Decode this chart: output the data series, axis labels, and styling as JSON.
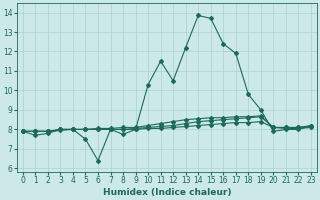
{
  "xlabel": "Humidex (Indice chaleur)",
  "background_color": "#cce8e8",
  "grid_color": "#aad0d0",
  "line_color": "#1a6b5a",
  "xlim": [
    -0.5,
    23.5
  ],
  "ylim": [
    5.8,
    14.5
  ],
  "yticks": [
    6,
    7,
    8,
    9,
    10,
    11,
    12,
    13,
    14
  ],
  "xticks": [
    0,
    1,
    2,
    3,
    4,
    5,
    6,
    7,
    8,
    9,
    10,
    11,
    12,
    13,
    14,
    15,
    16,
    17,
    18,
    19,
    20,
    21,
    22,
    23
  ],
  "line1_x": [
    0,
    1,
    2,
    3,
    4,
    5,
    6,
    7,
    8,
    9,
    10,
    11,
    12,
    13,
    14,
    15,
    16,
    17,
    18,
    19,
    20,
    21,
    22,
    23
  ],
  "line1_y": [
    7.9,
    7.7,
    7.8,
    8.0,
    8.0,
    7.5,
    6.4,
    8.0,
    7.75,
    8.0,
    10.3,
    11.5,
    10.5,
    12.2,
    13.85,
    13.7,
    12.4,
    11.9,
    9.8,
    9.0,
    7.9,
    8.0,
    8.0,
    8.2
  ],
  "line2_x": [
    0,
    1,
    2,
    3,
    4,
    5,
    6,
    7,
    8,
    9,
    10,
    11,
    12,
    13,
    14,
    15,
    16,
    17,
    18,
    19,
    20,
    21,
    22,
    23
  ],
  "line2_y": [
    7.9,
    7.9,
    7.9,
    8.0,
    8.0,
    8.0,
    8.05,
    8.05,
    8.1,
    8.1,
    8.2,
    8.3,
    8.4,
    8.5,
    8.55,
    8.6,
    8.6,
    8.65,
    8.65,
    8.7,
    8.1,
    8.1,
    8.1,
    8.2
  ],
  "line3_x": [
    0,
    1,
    2,
    3,
    4,
    5,
    6,
    7,
    8,
    9,
    10,
    11,
    12,
    13,
    14,
    15,
    16,
    17,
    18,
    19,
    20,
    21,
    22,
    23
  ],
  "line3_y": [
    7.9,
    7.9,
    7.9,
    8.0,
    8.0,
    8.0,
    8.0,
    8.0,
    8.0,
    8.05,
    8.1,
    8.15,
    8.2,
    8.3,
    8.4,
    8.45,
    8.5,
    8.55,
    8.6,
    8.65,
    8.1,
    8.1,
    8.1,
    8.15
  ],
  "line4_x": [
    0,
    1,
    2,
    3,
    4,
    5,
    6,
    7,
    8,
    9,
    10,
    11,
    12,
    13,
    14,
    15,
    16,
    17,
    18,
    19,
    20,
    21,
    22,
    23
  ],
  "line4_y": [
    7.9,
    7.9,
    7.9,
    7.95,
    8.0,
    8.0,
    8.0,
    8.0,
    8.0,
    8.0,
    8.05,
    8.05,
    8.1,
    8.15,
    8.2,
    8.25,
    8.3,
    8.35,
    8.35,
    8.4,
    8.1,
    8.05,
    8.05,
    8.1
  ],
  "marker": "D",
  "marker_size": 2,
  "linewidth": 0.8,
  "tick_fontsize": 5.5,
  "label_fontsize": 6.5
}
